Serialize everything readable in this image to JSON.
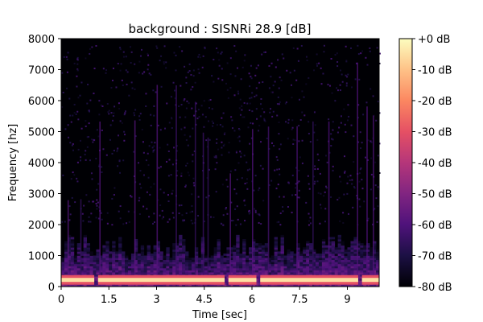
{
  "chart_data": {
    "type": "heatmap",
    "title": "background : SISNRi 28.9 [dB]",
    "xlabel": "Time [sec]",
    "ylabel": "Frequency [hz]",
    "xlim": [
      0,
      10
    ],
    "ylim": [
      0,
      8000
    ],
    "x_ticks": [
      0,
      1.5,
      3,
      4.5,
      6,
      7.5,
      9
    ],
    "x_tick_labels": [
      "0",
      "1.5",
      "3",
      "4.5",
      "6",
      "7.5",
      "9"
    ],
    "y_ticks": [
      0,
      1000,
      2000,
      3000,
      4000,
      5000,
      6000,
      7000,
      8000
    ],
    "y_tick_labels": [
      "0",
      "1000",
      "2000",
      "3000",
      "4000",
      "5000",
      "6000",
      "7000",
      "8000"
    ],
    "colorbar": {
      "colormap": "magma",
      "range_db": [
        -80,
        0
      ],
      "ticks": [
        0,
        -10,
        -20,
        -30,
        -40,
        -50,
        -60,
        -70,
        -80
      ],
      "tick_labels": [
        "+0 dB",
        "-10 dB",
        "-20 dB",
        "-30 dB",
        "-40 dB",
        "-50 dB",
        "-60 dB",
        "-70 dB",
        "-80 dB"
      ]
    },
    "features": {
      "low_frequency_band_hz": [
        150,
        280
      ],
      "low_frequency_band_level_db": -5,
      "broadband_energy_region_hz": [
        0,
        1500
      ],
      "broadband_energy_level_db": -55,
      "background_level_db": -80,
      "band_dropout_times_sec": [
        1.1,
        5.2,
        6.2,
        9.4
      ],
      "vertical_transient_times_sec": [
        0.2,
        0.6,
        1.2,
        2.3,
        3.0,
        3.6,
        4.2,
        4.45,
        4.6,
        5.3,
        6.0,
        6.5,
        7.4,
        7.9,
        8.4,
        9.3,
        9.6,
        9.8
      ]
    }
  }
}
